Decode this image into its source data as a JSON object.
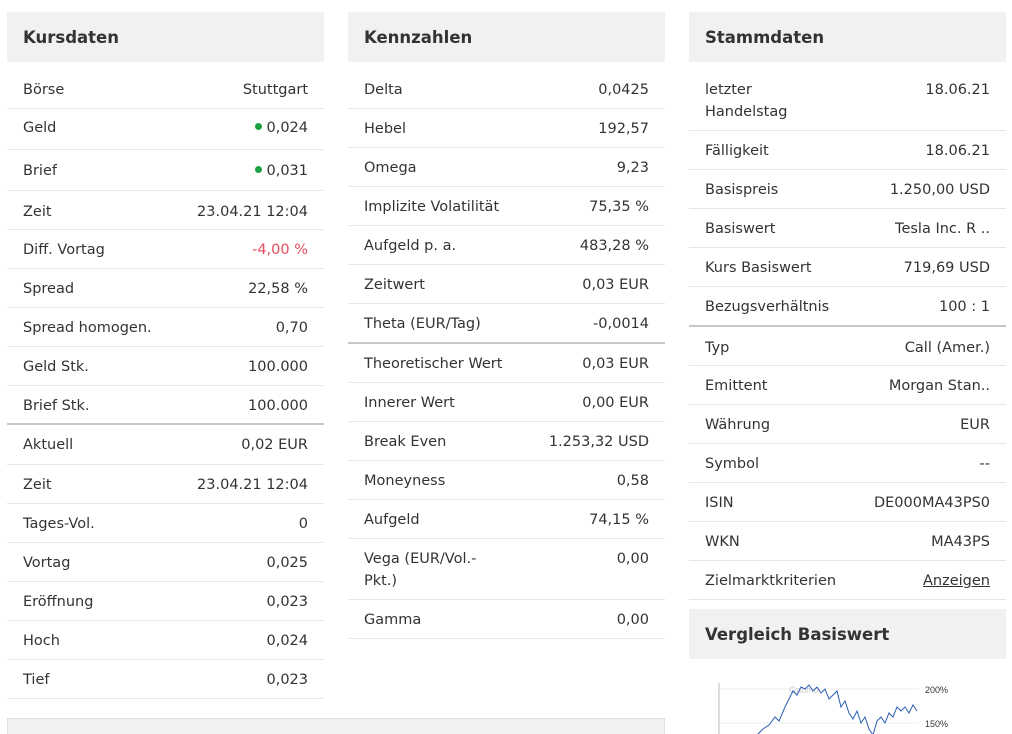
{
  "kursdaten": {
    "title": "Kursdaten",
    "rows1": [
      {
        "label": "Börse",
        "value": "Stuttgart"
      },
      {
        "label": "Geld",
        "value": "0,024"
      },
      {
        "label": "Brief",
        "value": "0,031"
      },
      {
        "label": "Zeit",
        "value": "23.04.21 12:04"
      },
      {
        "label": "Diff. Vortag",
        "value": "-4,00 %"
      },
      {
        "label": "Spread",
        "value": "22,58 %"
      },
      {
        "label": "Spread homogen.",
        "value": "0,70"
      },
      {
        "label": "Geld Stk.",
        "value": "100.000"
      },
      {
        "label": "Brief Stk.",
        "value": "100.000"
      }
    ],
    "rows2": [
      {
        "label": "Aktuell",
        "value": "0,02 EUR"
      },
      {
        "label": "Zeit",
        "value": "23.04.21 12:04"
      },
      {
        "label": "Tages-Vol.",
        "value": "0"
      },
      {
        "label": "Vortag",
        "value": "0,025"
      },
      {
        "label": "Eröffnung",
        "value": "0,023"
      },
      {
        "label": "Hoch",
        "value": "0,024"
      },
      {
        "label": "Tief",
        "value": "0,023"
      }
    ],
    "status_colors": {
      "bid_ask_dot": "#1aa142",
      "negative": "#e34c5a"
    }
  },
  "kennzahlen": {
    "title": "Kennzahlen",
    "rows1": [
      {
        "label": "Delta",
        "value": "0,0425"
      },
      {
        "label": "Hebel",
        "value": "192,57"
      },
      {
        "label": "Omega",
        "value": "9,23"
      },
      {
        "label": "Implizite Volatilität",
        "value": "75,35 %"
      },
      {
        "label": "Aufgeld p. a.",
        "value": "483,28 %"
      },
      {
        "label": "Zeitwert",
        "value": "0,03 EUR"
      },
      {
        "label": "Theta (EUR/Tag)",
        "value": "-0,0014"
      }
    ],
    "rows2": [
      {
        "label": "Theoretischer Wert",
        "value": "0,03 EUR"
      },
      {
        "label": "Innerer Wert",
        "value": "0,00 EUR"
      },
      {
        "label": "Break Even",
        "value": "1.253,32 USD"
      },
      {
        "label": "Moneyness",
        "value": "0,58"
      },
      {
        "label": "Aufgeld",
        "value": "74,15 %"
      },
      {
        "label": "Vega (EUR/Vol.-Pkt.)",
        "value": "0,00"
      },
      {
        "label": "Gamma",
        "value": "0,00"
      }
    ]
  },
  "stammdaten": {
    "title": "Stammdaten",
    "rows1": [
      {
        "label": "letzter Handelstag",
        "value": "18.06.21"
      },
      {
        "label": "Fälligkeit",
        "value": "18.06.21"
      },
      {
        "label": "Basispreis",
        "value": "1.250,00 USD"
      },
      {
        "label": "Basiswert",
        "value": "Tesla Inc. R .."
      },
      {
        "label": "Kurs Basiswert",
        "value": "719,69 USD"
      },
      {
        "label": "Bezugsverhältnis",
        "value": "100 : 1"
      }
    ],
    "rows2": [
      {
        "label": "Typ",
        "value": "Call (Amer.)"
      },
      {
        "label": "Emittent",
        "value": "Morgan Stan.."
      },
      {
        "label": "Währung",
        "value": "EUR"
      },
      {
        "label": "Symbol",
        "value": "--"
      },
      {
        "label": "ISIN",
        "value": "DE000MA43PS0"
      },
      {
        "label": "WKN",
        "value": "MA43PS"
      },
      {
        "label": "Zielmarktkriterien",
        "value": "Anzeigen"
      }
    ]
  },
  "vergleich": {
    "title": "Vergleich Basiswert",
    "axis_labels": [
      "200%",
      "150%"
    ],
    "line_color": "#2a5db0"
  }
}
